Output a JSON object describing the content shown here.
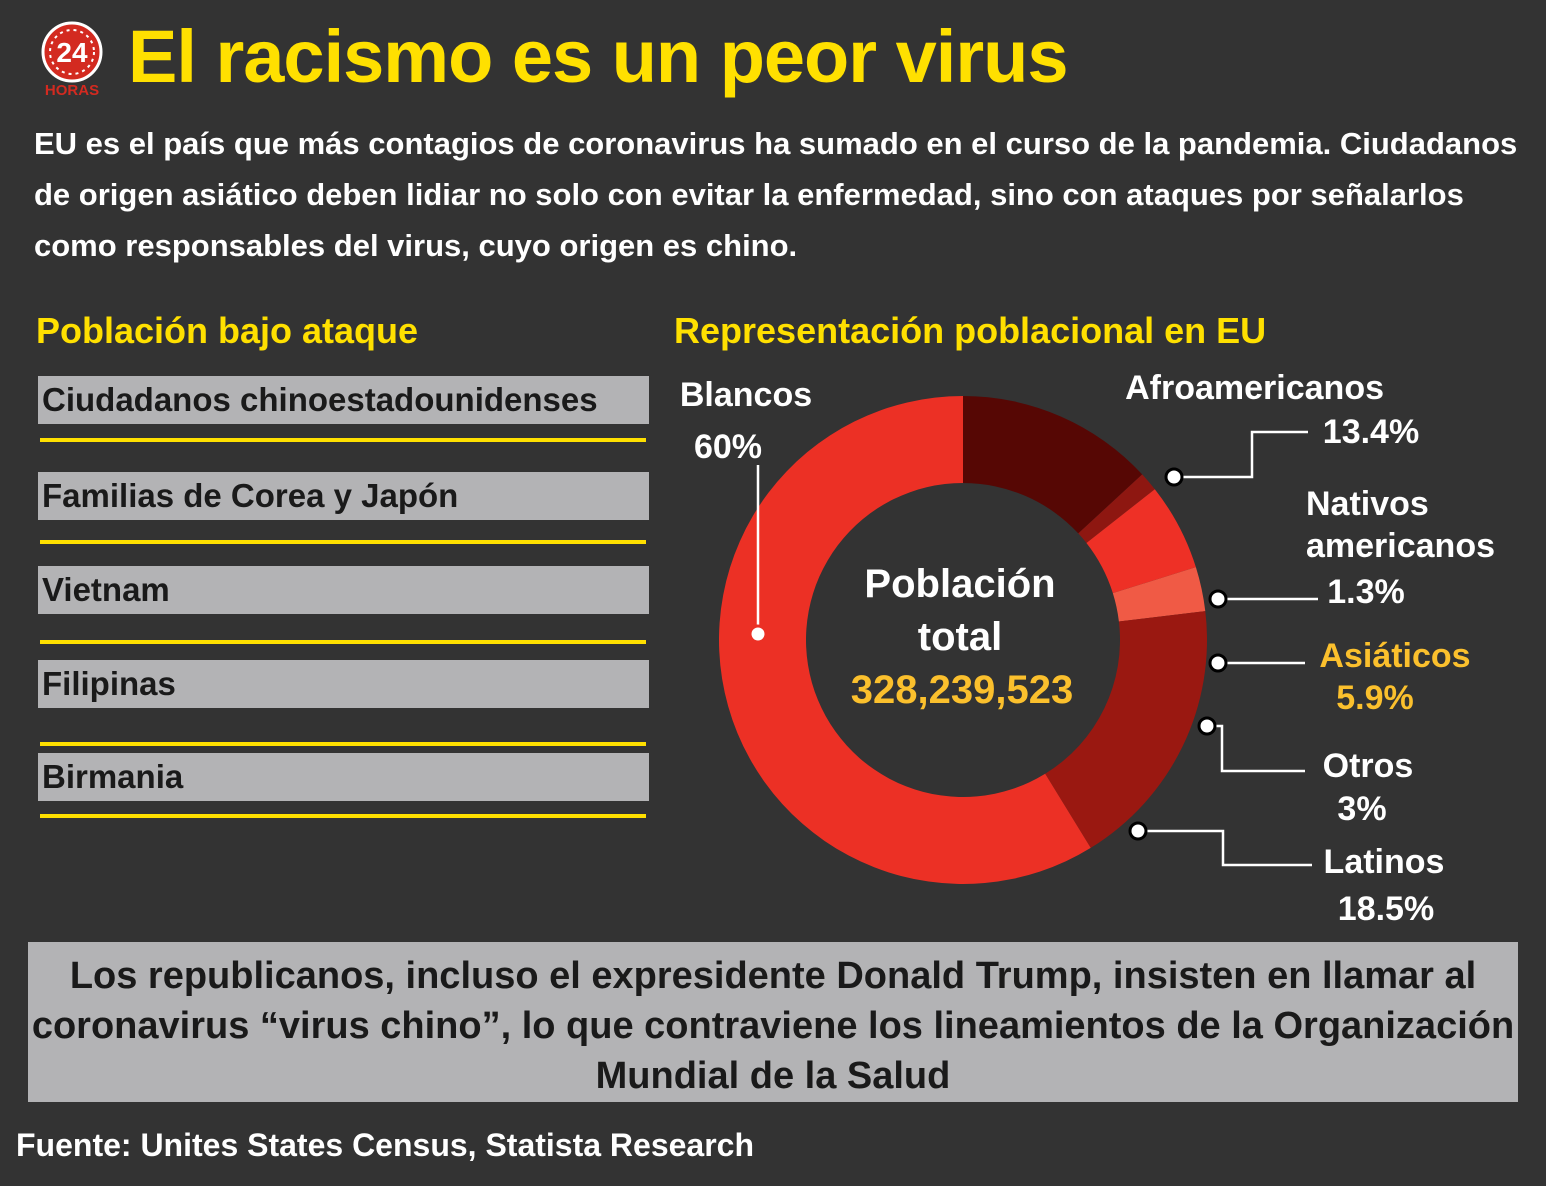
{
  "title": "El racismo es un peor virus",
  "logo": {
    "number": "24",
    "name": "HORAS",
    "icon": "24-horas-logo"
  },
  "intro": "EU es el país que más contagios de coronavirus ha sumado en el curso de la pandemia. Ciudadanos de origen asiático deben lidiar no solo con evitar la enfermedad, sino con ataques por señalarlos como responsables del virus, cuyo origen es chino.",
  "left_section": {
    "title": "Población bajo ataque",
    "items": [
      "Ciudadanos chinoestadounidenses",
      "Familias de Corea y Japón",
      "Vietnam",
      "Filipinas",
      "Birmania"
    ]
  },
  "right_section": {
    "title": "Representación poblacional en EU"
  },
  "chart_data": {
    "type": "pie",
    "donut": true,
    "title": "Representación poblacional en EU",
    "center": {
      "line1": "Población",
      "line2": "total",
      "value": "328,239,523"
    },
    "slices": [
      {
        "name": "Afroamericanos",
        "label": "Afroamericanos",
        "pct_label": "13.4%",
        "value": 13.4,
        "color": "#560704"
      },
      {
        "name": "Nativos americanos",
        "label_lines": [
          "Nativos",
          "americanos"
        ],
        "pct_label": "1.3%",
        "value": 1.3,
        "color": "#8e1711"
      },
      {
        "name": "Asiáticos",
        "label": "Asiáticos",
        "pct_label": "5.9%",
        "value": 5.9,
        "color": "#ee3026",
        "highlight": "#fbc02d"
      },
      {
        "name": "Otros",
        "label": "Otros",
        "pct_label": "3%",
        "value": 3,
        "color": "#f05a45"
      },
      {
        "name": "Latinos",
        "label": "Latinos",
        "pct_label": "18.5%",
        "value": 18.5,
        "color": "#9a1811"
      },
      {
        "name": "Blancos",
        "label": "Blancos",
        "pct_label": "60%",
        "value": 60,
        "color": "#ec3025"
      }
    ]
  },
  "note": "Los republicanos, incluso el expresidente Donald Trump, insisten en llamar al coronavirus “virus chino”, lo que contraviene los lineamientos de la Organización Mundial de la Salud",
  "source": "Fuente: Unites States Census, Statista Research",
  "colors": {
    "background": "#333333",
    "accent_yellow": "#ffe000",
    "box_gray": "#b3b3b5",
    "asian_label": "#fbc02d"
  }
}
